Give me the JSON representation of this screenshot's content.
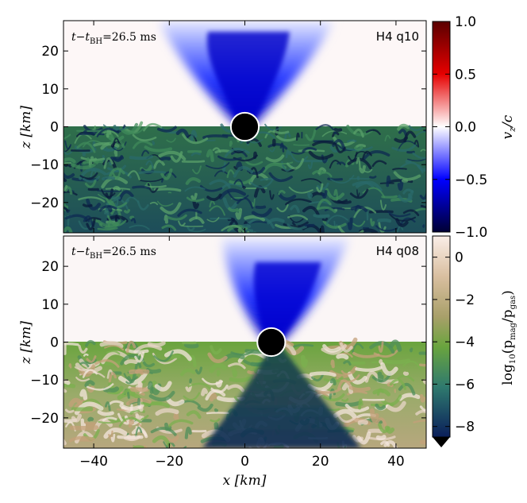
{
  "chart_data": [
    {
      "type": "heatmap",
      "panel": "top",
      "label_right": "H4 q10",
      "time_prefix": "t−t",
      "time_sub": "BH",
      "time_value": "=26.5 ms",
      "xlim": [
        -48,
        48
      ],
      "ylim": [
        -28,
        28
      ],
      "yticks": [
        -20,
        -10,
        0,
        10,
        20
      ],
      "ylabel": "z [km]",
      "black_hole": {
        "x": 0,
        "z": 0,
        "radius_km": 3.7
      },
      "upper_half_field": "v_z/c",
      "lower_half_field": "log10(p_mag/p_gas)"
    },
    {
      "type": "heatmap",
      "panel": "bottom",
      "label_right": "H4 q08",
      "time_prefix": "t−t",
      "time_sub": "BH",
      "time_value": "=26.5 ms",
      "xlim": [
        -48,
        48
      ],
      "ylim": [
        -28,
        28
      ],
      "xticks": [
        -40,
        -20,
        0,
        20,
        40
      ],
      "yticks": [
        -20,
        -10,
        0,
        10,
        20
      ],
      "xlabel": "x [km]",
      "ylabel": "z [km]",
      "black_hole": {
        "x": 7.0,
        "z": 0,
        "radius_km": 3.7
      },
      "upper_half_field": "v_z/c",
      "lower_half_field": "log10(p_mag/p_gas)"
    }
  ],
  "colorbars": [
    {
      "field": "v_z/c",
      "label_main": "v",
      "label_sub": "z",
      "label_rest": "/c",
      "range": [
        -1.0,
        1.0
      ],
      "ticks": [
        "1.0",
        "0.5",
        "0.0",
        "−0.5",
        "−1.0"
      ],
      "tick_values": [
        1.0,
        0.5,
        0.0,
        -0.5,
        -1.0
      ],
      "colors": [
        "#5a0000",
        "#e60000",
        "#ffffff",
        "#0000ff",
        "#000033"
      ]
    },
    {
      "field": "log10(p_mag/p_gas)",
      "label": "log₁₀(p_mag/p_gas)",
      "label_log": "log",
      "label_10": "10",
      "label_open": "(p",
      "label_mag": "mag",
      "label_slash": "/p",
      "label_gas": "gas",
      "label_close": ")",
      "range": [
        -8.5,
        1.0
      ],
      "extend": "min",
      "ticks": [
        "0",
        "−2",
        "−4",
        "−6",
        "−8"
      ],
      "tick_values": [
        0,
        -2,
        -4,
        -6,
        -8
      ],
      "colors": [
        "#fbeee8",
        "#c6a27a",
        "#6aa43e",
        "#2f7a6e",
        "#0a1e5a"
      ]
    }
  ]
}
